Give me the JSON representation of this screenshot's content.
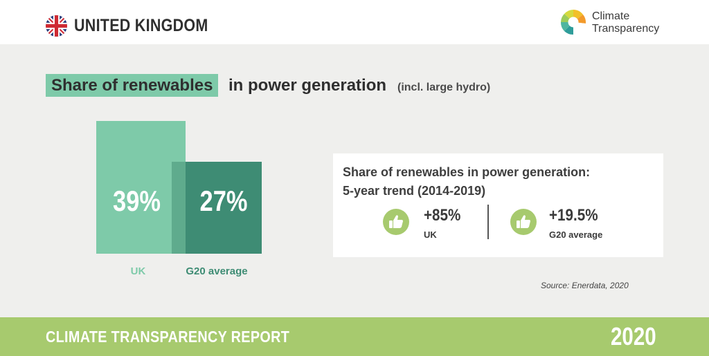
{
  "header": {
    "country": "UNITED KINGDOM",
    "flag_icon": "uk-flag-icon",
    "logo": {
      "line1": "Climate",
      "line2": "Transparency",
      "icon": "climate-transparency-logo-icon"
    }
  },
  "heading": {
    "highlight": "Share of renewables",
    "rest": "in power generation",
    "note": "(incl. large hydro)"
  },
  "chart_data": {
    "type": "bar",
    "title": "Share of renewables in power generation (incl. large hydro)",
    "categories": [
      "UK",
      "G20 average"
    ],
    "values": [
      39,
      27
    ],
    "value_labels": [
      "39%",
      "27%"
    ],
    "unit": "%",
    "colors": [
      "#7ecaa9",
      "#3e8c74"
    ]
  },
  "trend": {
    "title_line1": "Share of renewables in power generation:",
    "title_line2": "5-year trend (2014-2019)",
    "items": [
      {
        "value": "+85%",
        "label": "UK",
        "icon": "thumbs-up-icon"
      },
      {
        "value": "+19.5%",
        "label": "G20 average",
        "icon": "thumbs-up-icon"
      }
    ]
  },
  "source": "Source: Enerdata, 2020",
  "footer": {
    "title": "CLIMATE TRANSPARENCY REPORT",
    "year": "2020"
  },
  "colors": {
    "green_light": "#7ecaa9",
    "green_dark": "#3e8c74",
    "lime": "#a7ca6e",
    "panel": "#efefed"
  }
}
